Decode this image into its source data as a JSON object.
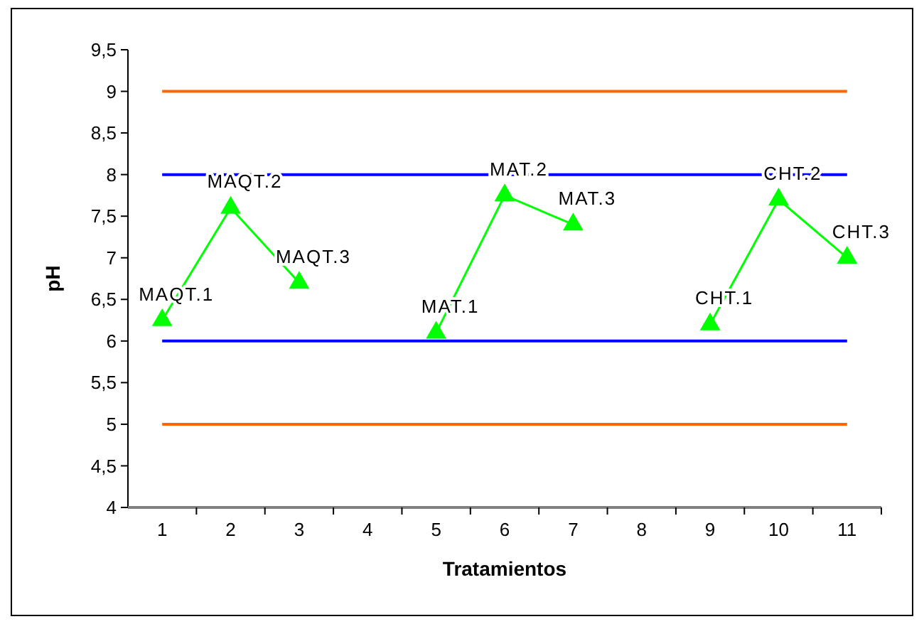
{
  "chart_data": {
    "type": "line",
    "xlabel": "Tratamientos",
    "ylabel": "pH",
    "categories": [
      "1",
      "2",
      "3",
      "4",
      "5",
      "6",
      "7",
      "8",
      "9",
      "10",
      "11"
    ],
    "series": [
      {
        "color": "#00ff00",
        "values": [
          6.25,
          7.6,
          6.7,
          null,
          6.1,
          7.75,
          7.4,
          null,
          6.2,
          7.7,
          7.0
        ],
        "marker": "triangle"
      }
    ],
    "ylim": [
      4,
      9.5
    ],
    "yticks": [
      4,
      {
        "value": 4.5,
        "label": "4,5"
      },
      5,
      {
        "value": 5.5,
        "label": "5,5"
      },
      6,
      {
        "value": 6.5,
        "label": "6,5"
      },
      7,
      {
        "value": 7.5,
        "label": "7,5"
      },
      8,
      {
        "value": 8.5,
        "label": "8,5"
      },
      9,
      {
        "value": 9.5,
        "label": "9,5"
      }
    ],
    "ref_lines": [
      {
        "axis": "y",
        "value": 9,
        "color": "#ff6600"
      },
      {
        "axis": "y",
        "value": 8,
        "color": "#0000ff"
      },
      {
        "axis": "y",
        "value": 6,
        "color": "#0000ff"
      },
      {
        "axis": "y",
        "value": 5,
        "color": "#ff6600"
      }
    ],
    "annotations": [
      {
        "text": "MAQT.1",
        "x": "1",
        "y": 6.25
      },
      {
        "text": "MAQT.2",
        "x": "2",
        "y": 7.6
      },
      {
        "text": "MAQT.3",
        "x": "3",
        "y": 6.7
      },
      {
        "text": "MAT.1",
        "x": "5",
        "y": 6.1
      },
      {
        "text": "MAT.2",
        "x": "6",
        "y": 7.75
      },
      {
        "text": "MAT.3",
        "x": "7",
        "y": 7.4
      },
      {
        "text": "CHT.1",
        "x": "9",
        "y": 6.2
      },
      {
        "text": "CHT.2",
        "x": "10",
        "y": 7.7
      },
      {
        "text": "CHT.3",
        "x": "11",
        "y": 7.0
      }
    ],
    "grid": false
  }
}
